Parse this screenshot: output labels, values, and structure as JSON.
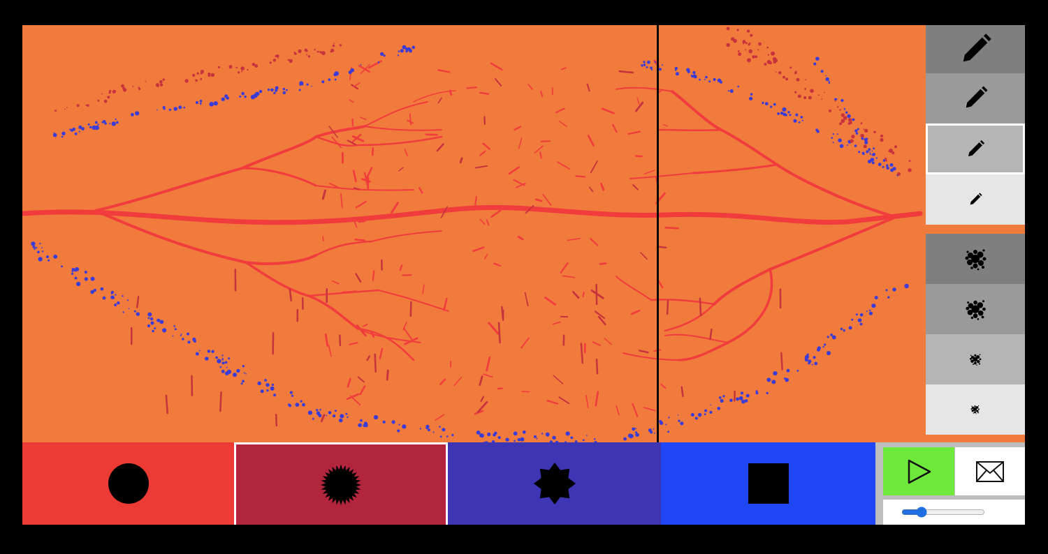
{
  "colors": {
    "frame": "#000000",
    "canvas_background": "#f07b3c",
    "stroke_red": "#f03c3c",
    "stroke_dark_red": "#c8323c",
    "stroke_blue": "#3b3bd6",
    "playhead": "#0a0a0a",
    "selection_border": "#ffffff"
  },
  "brush_sizes": [
    {
      "name": "pencil-extra-large",
      "icon": "pencil-icon",
      "bg": "#7f7f7f",
      "selected": false
    },
    {
      "name": "pencil-large",
      "icon": "pencil-icon",
      "bg": "#9a9a9a",
      "selected": false
    },
    {
      "name": "pencil-medium",
      "icon": "pencil-icon",
      "bg": "#b5b5b5",
      "selected": true
    },
    {
      "name": "pencil-small",
      "icon": "pencil-icon",
      "bg": "#e6e6e6",
      "selected": false
    }
  ],
  "spray_sizes": [
    {
      "name": "spray-extra-large",
      "icon": "spray-dots-icon",
      "bg": "#7f7f7f",
      "selected": false
    },
    {
      "name": "spray-large",
      "icon": "spray-dots-icon",
      "bg": "#9a9a9a",
      "selected": false
    },
    {
      "name": "spray-medium",
      "icon": "spray-dots-icon",
      "bg": "#b5b5b5",
      "selected": false
    },
    {
      "name": "spray-small",
      "icon": "spray-dots-icon",
      "bg": "#e6e6e6",
      "selected": false
    }
  ],
  "instruments": [
    {
      "name": "circle",
      "icon": "circle-icon",
      "color": "#ec3a35",
      "selected": false
    },
    {
      "name": "spiky",
      "icon": "spiky-star-icon",
      "color": "#b2253c",
      "selected": true
    },
    {
      "name": "star",
      "icon": "eight-point-star-icon",
      "color": "#3e35b5",
      "selected": false
    },
    {
      "name": "square",
      "icon": "square-icon",
      "color": "#1f47f5",
      "selected": false
    }
  ],
  "controls": {
    "play_icon": "play-icon",
    "play_color": "#6fe83c",
    "send_icon": "envelope-icon",
    "tempo_value": 0.2
  }
}
